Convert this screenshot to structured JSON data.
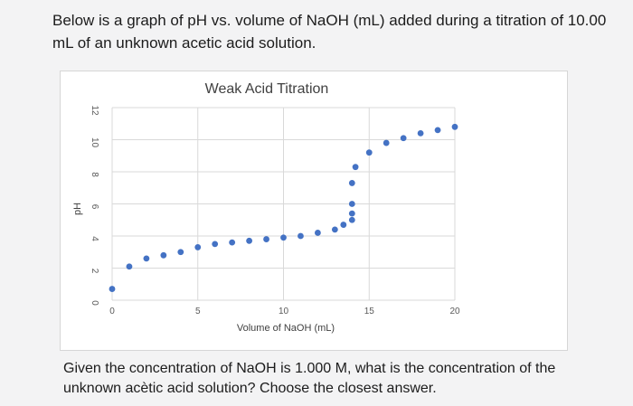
{
  "question": {
    "intro": "Below is a graph of pH vs. volume of NaOH (mL) added during a titration of 10.00 mL of an unknown acetic acid solution.",
    "prompt": "Given the concentration of NaOH is 1.000 M, what is the concentration of the unknown acètic acid solution? Choose the closest answer."
  },
  "chart_data": {
    "type": "scatter",
    "title": "Weak Acid Titration",
    "xlabel": "Volume of NaOH (mL)",
    "ylabel": "pH",
    "xlim": [
      0,
      20
    ],
    "ylim": [
      0,
      12
    ],
    "xticks": [
      "0",
      "5",
      "10",
      "15",
      "20"
    ],
    "yticks": [
      "0",
      "2",
      "4",
      "6",
      "8",
      "10",
      "12"
    ],
    "grid": true,
    "marker_color": "#4472c4",
    "series": [
      {
        "x": [
          0,
          1,
          2,
          3,
          4,
          5,
          6,
          7,
          8,
          9,
          10,
          11,
          12,
          13,
          13.5,
          14,
          14,
          14,
          14,
          14.2,
          15,
          16,
          17,
          18,
          19,
          20
        ],
        "y": [
          0.7,
          2.1,
          2.6,
          2.8,
          3.0,
          3.3,
          3.5,
          3.6,
          3.7,
          3.8,
          3.9,
          4.0,
          4.2,
          4.4,
          4.7,
          5.0,
          5.4,
          6.0,
          7.3,
          8.3,
          9.2,
          9.8,
          10.1,
          10.4,
          10.6,
          10.8
        ]
      }
    ]
  }
}
